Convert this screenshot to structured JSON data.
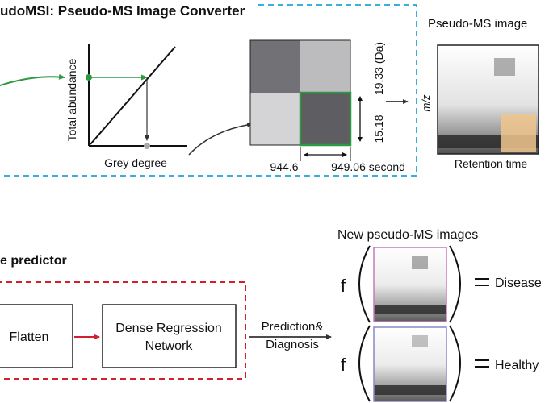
{
  "converter": {
    "title": "udoMSI: Pseudo-MS Image Converter",
    "title_color": "#2aa6d6",
    "box_color": "#39b0dc",
    "plot": {
      "ylabel": "Total abundance",
      "xlabel": "Grey degree",
      "line_color": "#2a9a3e"
    },
    "grid": {
      "highlight_color": "#2a9a3e",
      "mz_top": "19.33 (Da)",
      "mz_height": "15.18",
      "rt_left": "944.6",
      "rt_right": "949.06 second"
    }
  },
  "pseudo_ms": {
    "title": "Pseudo-MS image",
    "axis_y": "m/z",
    "axis_x": "Retention time",
    "overlay_color": "#f0c68e"
  },
  "predictor": {
    "title": "e predictor",
    "title_color": "#d32030",
    "box_color": "#d32030",
    "flatten_label": "Flatten",
    "dense_label_1": "Dense Regression",
    "dense_label_2": "Network",
    "prediction_label_1": "Prediction&",
    "prediction_label_2": "Diagnosis"
  },
  "new_images": {
    "title": "New pseudo-MS images",
    "function_symbol": "f",
    "disease_label": "Disease",
    "healthy_label": "Healthy",
    "disease_frame_color": "#c77ab8",
    "healthy_frame_color": "#8a86c8"
  }
}
